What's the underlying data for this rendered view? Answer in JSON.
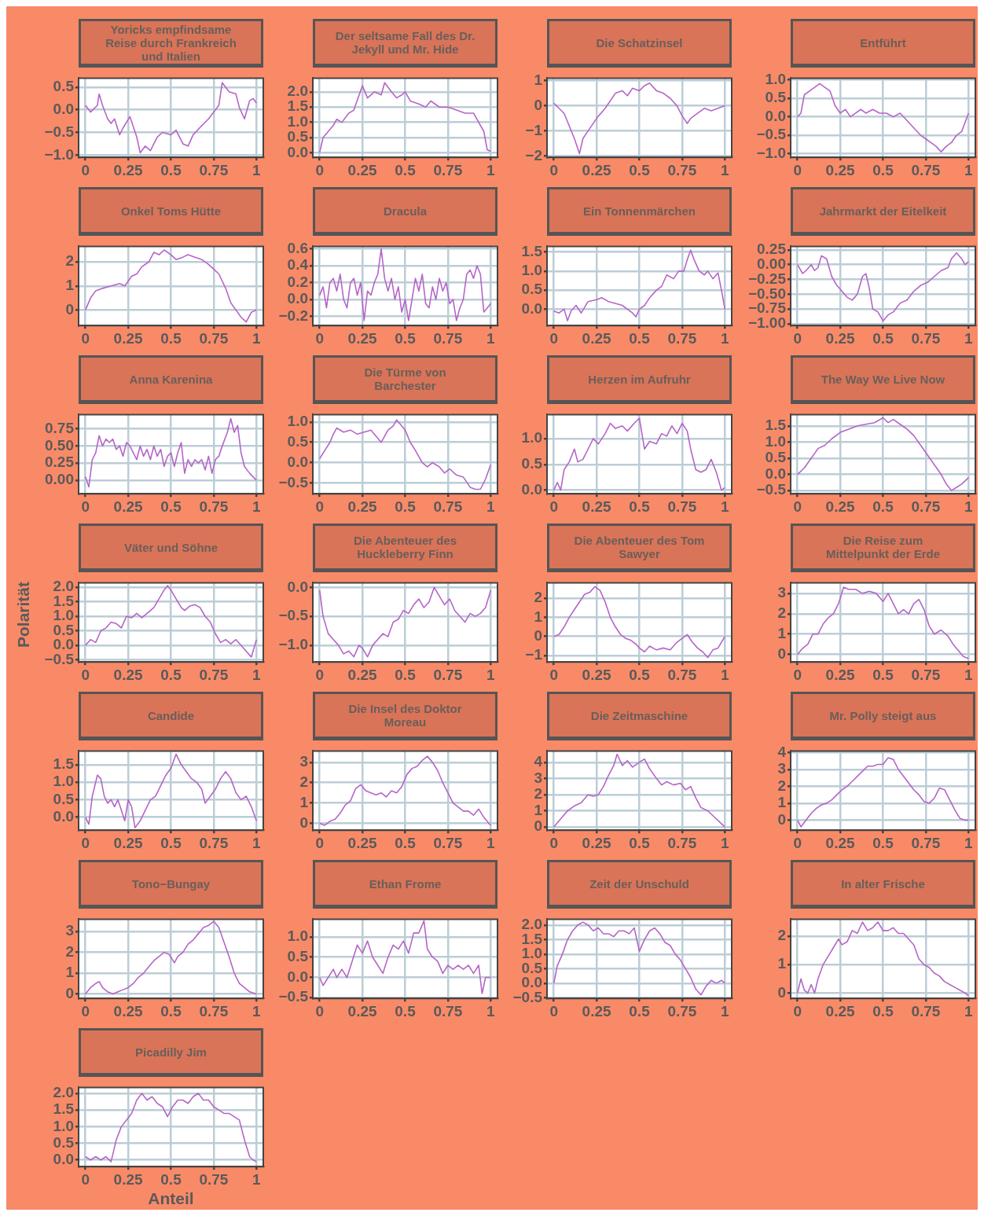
{
  "chart_data": [
    {
      "type": "line",
      "title": "Yoricks empfindsame Reise durch Frankreich und Italien",
      "color": "#b565c8",
      "grid": true,
      "xlim": [
        -0.04,
        1.04
      ],
      "xticks": [
        0,
        0.25,
        0.5,
        0.75,
        1
      ],
      "ylim": [
        -1.05,
        0.7
      ],
      "yticks": [
        0.5,
        {
          "value": 0,
          "label": "0.0"
        },
        {
          "value": -0.5,
          "label": "−0.5"
        },
        {
          "value": -1,
          "label": "−1.0"
        }
      ],
      "x": [
        0,
        0.03,
        0.07,
        0.08,
        0.1,
        0.13,
        0.15,
        0.17,
        0.2,
        0.22,
        0.26,
        0.3,
        0.32,
        0.35,
        0.38,
        0.42,
        0.45,
        0.5,
        0.53,
        0.57,
        0.6,
        0.63,
        0.68,
        0.72,
        0.76,
        0.78,
        0.8,
        0.84,
        0.88,
        0.9,
        0.93,
        0.96,
        0.98,
        1
      ],
      "values": [
        0.1,
        -0.05,
        0.1,
        0.35,
        0.1,
        -0.2,
        -0.3,
        -0.2,
        -0.55,
        -0.4,
        -0.15,
        -0.6,
        -0.95,
        -0.8,
        -0.9,
        -0.6,
        -0.5,
        -0.55,
        -0.45,
        -0.75,
        -0.8,
        -0.55,
        -0.35,
        -0.2,
        0,
        0.1,
        0.6,
        0.4,
        0.35,
        0.05,
        -0.2,
        0.2,
        0.25,
        0.15
      ]
    },
    {
      "type": "line",
      "title": "Der seltsame Fall des Dr. Jekyll und Mr. Hide",
      "color": "#b565c8",
      "grid": true,
      "xlim": [
        -0.04,
        1.04
      ],
      "xticks": [
        0,
        0.25,
        0.5,
        0.75,
        1
      ],
      "ylim": [
        -0.15,
        2.45
      ],
      "yticks": [
        {
          "value": 2,
          "label": "2.0"
        },
        1.5,
        {
          "value": 1,
          "label": "1.0"
        },
        0.5,
        {
          "value": 0,
          "label": "0.0"
        }
      ],
      "x": [
        0,
        0.02,
        0.05,
        0.08,
        0.1,
        0.13,
        0.17,
        0.2,
        0.25,
        0.28,
        0.32,
        0.36,
        0.38,
        0.42,
        0.45,
        0.48,
        0.5,
        0.53,
        0.58,
        0.62,
        0.65,
        0.7,
        0.75,
        0.8,
        0.85,
        0.9,
        0.93,
        0.96,
        0.98,
        1
      ],
      "values": [
        0,
        0.5,
        0.7,
        0.9,
        1.1,
        1,
        1.3,
        1.4,
        2.2,
        1.8,
        2,
        1.9,
        2.3,
        2,
        1.8,
        1.9,
        2,
        1.7,
        1.6,
        1.5,
        1.7,
        1.5,
        1.5,
        1.4,
        1.3,
        1.3,
        1,
        0.7,
        0.1,
        0.05
      ]
    },
    {
      "type": "line",
      "title": "Die Schatzinsel",
      "color": "#b565c8",
      "grid": true,
      "xlim": [
        -0.04,
        1.04
      ],
      "xticks": [
        0,
        0.25,
        0.5,
        0.75,
        1
      ],
      "ylim": [
        -2.05,
        1.1
      ],
      "yticks": [
        1,
        0,
        {
          "value": -1,
          "label": "−1"
        },
        {
          "value": -2,
          "label": "−2"
        }
      ],
      "x": [
        0,
        0.03,
        0.06,
        0.09,
        0.12,
        0.15,
        0.17,
        0.2,
        0.25,
        0.3,
        0.33,
        0.36,
        0.4,
        0.43,
        0.46,
        0.5,
        0.53,
        0.56,
        0.6,
        0.64,
        0.68,
        0.72,
        0.75,
        0.78,
        0.8,
        0.84,
        0.88,
        0.92,
        0.96,
        1
      ],
      "values": [
        0.1,
        -0.1,
        -0.3,
        -0.8,
        -1.3,
        -1.9,
        -1.3,
        -1,
        -0.5,
        -0.1,
        0.2,
        0.5,
        0.6,
        0.4,
        0.7,
        0.6,
        0.8,
        0.9,
        0.6,
        0.5,
        0.3,
        0,
        -0.4,
        -0.7,
        -0.5,
        -0.3,
        -0.1,
        -0.2,
        -0.1,
        0
      ]
    },
    {
      "type": "line",
      "title": "Entführt",
      "color": "#b565c8",
      "grid": true,
      "xlim": [
        -0.04,
        1.04
      ],
      "xticks": [
        0,
        0.25,
        0.5,
        0.75,
        1
      ],
      "ylim": [
        -1.1,
        1.05
      ],
      "yticks": [
        {
          "value": 1,
          "label": "1.0"
        },
        0.5,
        {
          "value": 0,
          "label": "0.0"
        },
        {
          "value": -0.5,
          "label": "−0.5"
        },
        {
          "value": -1,
          "label": "−1.0"
        }
      ],
      "x": [
        0,
        0.02,
        0.04,
        0.07,
        0.1,
        0.13,
        0.16,
        0.19,
        0.22,
        0.25,
        0.28,
        0.31,
        0.34,
        0.37,
        0.4,
        0.44,
        0.48,
        0.52,
        0.56,
        0.6,
        0.64,
        0.68,
        0.72,
        0.75,
        0.78,
        0.81,
        0.84,
        0.87,
        0.9,
        0.93,
        0.96,
        1
      ],
      "values": [
        0,
        0.1,
        0.6,
        0.7,
        0.8,
        0.9,
        0.8,
        0.7,
        0.3,
        0.1,
        0.2,
        0,
        0.1,
        0.2,
        0.1,
        0.2,
        0.1,
        0.1,
        0,
        0.1,
        -0.1,
        -0.3,
        -0.5,
        -0.6,
        -0.7,
        -0.8,
        -0.95,
        -0.8,
        -0.7,
        -0.5,
        -0.4,
        0.1
      ]
    },
    {
      "type": "line",
      "title": "Onkel Toms Hütte",
      "color": "#b565c8",
      "grid": true,
      "xlim": [
        -0.04,
        1.04
      ],
      "xticks": [
        0,
        0.25,
        0.5,
        0.75,
        1
      ],
      "ylim": [
        -0.65,
        2.65
      ],
      "yticks": [
        2,
        1,
        0
      ],
      "x": [
        0,
        0.03,
        0.06,
        0.1,
        0.15,
        0.2,
        0.23,
        0.27,
        0.3,
        0.33,
        0.37,
        0.4,
        0.43,
        0.46,
        0.5,
        0.53,
        0.57,
        0.6,
        0.64,
        0.68,
        0.72,
        0.75,
        0.78,
        0.82,
        0.85,
        0.88,
        0.91,
        0.94,
        0.97,
        1
      ],
      "values": [
        0,
        0.5,
        0.8,
        0.9,
        1,
        1.1,
        1,
        1.4,
        1.5,
        1.8,
        2,
        2.4,
        2.3,
        2.5,
        2.3,
        2.1,
        2.2,
        2.3,
        2.2,
        2.1,
        1.9,
        1.7,
        1.5,
        0.9,
        0.3,
        0,
        -0.3,
        -0.5,
        -0.1,
        0
      ]
    },
    {
      "type": "line",
      "title": "Dracula",
      "color": "#b565c8",
      "grid": true,
      "xlim": [
        -0.04,
        1.04
      ],
      "xticks": [
        0,
        0.25,
        0.5,
        0.75,
        1
      ],
      "ylim": [
        -0.31,
        0.63
      ],
      "yticks": [
        0.6,
        0.4,
        0.2,
        {
          "value": 0,
          "label": "0.0"
        },
        {
          "value": -0.2,
          "label": "−0.2"
        }
      ],
      "x": [
        0,
        0.02,
        0.04,
        0.06,
        0.08,
        0.1,
        0.12,
        0.14,
        0.16,
        0.18,
        0.2,
        0.22,
        0.24,
        0.26,
        0.28,
        0.3,
        0.32,
        0.34,
        0.36,
        0.38,
        0.4,
        0.42,
        0.44,
        0.46,
        0.48,
        0.5,
        0.52,
        0.54,
        0.56,
        0.58,
        0.6,
        0.62,
        0.64,
        0.66,
        0.68,
        0.7,
        0.72,
        0.74,
        0.76,
        0.78,
        0.8,
        0.82,
        0.84,
        0.86,
        0.88,
        0.9,
        0.92,
        0.94,
        0.96,
        0.98,
        1
      ],
      "values": [
        0.05,
        0.15,
        -0.1,
        0.2,
        0.25,
        0.1,
        0.3,
        0,
        -0.1,
        0.2,
        0.25,
        0.05,
        0.2,
        -0.25,
        0.1,
        0.05,
        0.2,
        0.3,
        0.6,
        0.25,
        0.1,
        0.25,
        0,
        0.15,
        -0.15,
        0,
        -0.25,
        0,
        0.25,
        0.1,
        0.3,
        -0.05,
        -0.1,
        0.15,
        0,
        0.25,
        0.1,
        0.2,
        -0.05,
        0,
        -0.25,
        -0.1,
        0,
        0.3,
        0.35,
        0.25,
        0.4,
        0.3,
        -0.15,
        -0.1,
        -0.05
      ]
    },
    {
      "type": "line",
      "title": "Ein Tonnenmärchen",
      "color": "#b565c8",
      "grid": true,
      "xlim": [
        -0.04,
        1.04
      ],
      "xticks": [
        0,
        0.25,
        0.5,
        0.75,
        1
      ],
      "ylim": [
        -0.43,
        1.65
      ],
      "yticks": [
        1.5,
        {
          "value": 1,
          "label": "1.0"
        },
        0.5,
        {
          "value": 0,
          "label": "0.0"
        }
      ],
      "x": [
        0,
        0.03,
        0.06,
        0.08,
        0.1,
        0.13,
        0.16,
        0.2,
        0.25,
        0.28,
        0.32,
        0.36,
        0.4,
        0.43,
        0.46,
        0.48,
        0.5,
        0.53,
        0.56,
        0.6,
        0.63,
        0.66,
        0.7,
        0.73,
        0.76,
        0.78,
        0.8,
        0.82,
        0.85,
        0.88,
        0.9,
        0.93,
        0.96,
        0.98,
        1
      ],
      "values": [
        -0.05,
        -0.1,
        0,
        -0.3,
        -0.05,
        0.1,
        -0.1,
        0.2,
        0.25,
        0.3,
        0.2,
        0.15,
        0.1,
        0,
        -0.1,
        -0.2,
        0,
        0.1,
        0.3,
        0.5,
        0.6,
        0.9,
        0.8,
        1,
        1,
        1.3,
        1.55,
        1.3,
        1,
        0.9,
        1,
        0.8,
        0.95,
        0.5,
        0
      ]
    },
    {
      "type": "line",
      "title": "Jahrmarkt der Eitelkeit",
      "color": "#b565c8",
      "grid": true,
      "xlim": [
        -0.04,
        1.04
      ],
      "xticks": [
        0,
        0.25,
        0.5,
        0.75,
        1
      ],
      "ylim": [
        -1.03,
        0.31
      ],
      "yticks": [
        0.25,
        {
          "value": 0,
          "label": "0.00"
        },
        {
          "value": -0.25,
          "label": "−0.25"
        },
        {
          "value": -0.5,
          "label": "−0.50"
        },
        {
          "value": -0.75,
          "label": "−0.75"
        },
        {
          "value": -1,
          "label": "−1.00"
        }
      ],
      "x": [
        0,
        0.03,
        0.05,
        0.08,
        0.1,
        0.12,
        0.14,
        0.17,
        0.2,
        0.23,
        0.26,
        0.29,
        0.32,
        0.35,
        0.38,
        0.4,
        0.42,
        0.44,
        0.47,
        0.5,
        0.53,
        0.56,
        0.6,
        0.64,
        0.68,
        0.72,
        0.76,
        0.8,
        0.84,
        0.88,
        0.9,
        0.93,
        0.96,
        0.98,
        1
      ],
      "values": [
        0,
        -0.15,
        -0.1,
        0,
        -0.1,
        -0.05,
        0.15,
        0.1,
        -0.2,
        -0.35,
        -0.45,
        -0.55,
        -0.6,
        -0.5,
        -0.2,
        -0.15,
        -0.4,
        -0.75,
        -0.8,
        -0.95,
        -0.85,
        -0.8,
        -0.65,
        -0.6,
        -0.45,
        -0.35,
        -0.3,
        -0.2,
        -0.1,
        -0.05,
        0.1,
        0.2,
        0.1,
        0,
        0.05
      ]
    },
    {
      "type": "line",
      "title": "Anna Karenina",
      "color": "#b565c8",
      "grid": true,
      "xlim": [
        -0.04,
        1.04
      ],
      "xticks": [
        0,
        0.25,
        0.5,
        0.75,
        1
      ],
      "ylim": [
        -0.2,
        0.96
      ],
      "yticks": [
        0.75,
        {
          "value": 0.5,
          "label": "0.50"
        },
        0.25,
        {
          "value": 0,
          "label": "0.00"
        }
      ],
      "x": [
        0,
        0.02,
        0.04,
        0.06,
        0.08,
        0.1,
        0.12,
        0.14,
        0.16,
        0.18,
        0.2,
        0.22,
        0.24,
        0.26,
        0.28,
        0.3,
        0.32,
        0.34,
        0.36,
        0.38,
        0.4,
        0.42,
        0.44,
        0.46,
        0.48,
        0.5,
        0.52,
        0.54,
        0.56,
        0.58,
        0.6,
        0.62,
        0.64,
        0.66,
        0.68,
        0.7,
        0.72,
        0.74,
        0.76,
        0.78,
        0.8,
        0.83,
        0.85,
        0.87,
        0.89,
        0.91,
        0.93,
        0.96,
        1
      ],
      "values": [
        0.05,
        -0.1,
        0.3,
        0.4,
        0.65,
        0.5,
        0.6,
        0.55,
        0.6,
        0.45,
        0.5,
        0.35,
        0.55,
        0.5,
        0.4,
        0.3,
        0.5,
        0.35,
        0.45,
        0.3,
        0.5,
        0.35,
        0.45,
        0.2,
        0.35,
        0.4,
        0.2,
        0.4,
        0.55,
        0.1,
        0.3,
        0.2,
        0.3,
        0.25,
        0.3,
        0.15,
        0.35,
        0.1,
        0.3,
        0.35,
        0.5,
        0.7,
        0.9,
        0.7,
        0.8,
        0.4,
        0.2,
        0.1,
        0
      ]
    },
    {
      "type": "line",
      "title": "Die Türme von Barchester",
      "color": "#b565c8",
      "grid": true,
      "xlim": [
        -0.04,
        1.04
      ],
      "xticks": [
        0,
        0.25,
        0.5,
        0.75,
        1
      ],
      "ylim": [
        -0.76,
        1.18
      ],
      "yticks": [
        {
          "value": 1,
          "label": "1.0"
        },
        0.5,
        {
          "value": 0,
          "label": "0.0"
        },
        {
          "value": -0.5,
          "label": "−0.5"
        }
      ],
      "x": [
        0,
        0.03,
        0.06,
        0.08,
        0.1,
        0.14,
        0.18,
        0.22,
        0.26,
        0.3,
        0.33,
        0.36,
        0.4,
        0.43,
        0.45,
        0.47,
        0.5,
        0.53,
        0.56,
        0.6,
        0.63,
        0.66,
        0.7,
        0.73,
        0.76,
        0.8,
        0.84,
        0.88,
        0.91,
        0.94,
        0.97,
        1
      ],
      "values": [
        0.1,
        0.3,
        0.5,
        0.7,
        0.85,
        0.75,
        0.8,
        0.7,
        0.75,
        0.8,
        0.65,
        0.5,
        0.8,
        0.9,
        1.05,
        0.95,
        0.8,
        0.5,
        0.3,
        0,
        -0.1,
        0,
        -0.1,
        -0.25,
        -0.15,
        -0.3,
        -0.35,
        -0.6,
        -0.65,
        -0.65,
        -0.4,
        -0.05
      ]
    },
    {
      "type": "line",
      "title": "Herzen im Aufruhr",
      "color": "#b565c8",
      "grid": true,
      "xlim": [
        -0.04,
        1.04
      ],
      "xticks": [
        0,
        0.25,
        0.5,
        0.75,
        1
      ],
      "ylim": [
        -0.07,
        1.47
      ],
      "yticks": [
        {
          "value": 1,
          "label": "1.0"
        },
        0.5,
        {
          "value": 0,
          "label": "0.0"
        }
      ],
      "x": [
        0,
        0.02,
        0.04,
        0.06,
        0.09,
        0.12,
        0.14,
        0.17,
        0.2,
        0.23,
        0.26,
        0.3,
        0.33,
        0.36,
        0.4,
        0.43,
        0.47,
        0.5,
        0.53,
        0.56,
        0.6,
        0.63,
        0.66,
        0.69,
        0.72,
        0.75,
        0.78,
        0.8,
        0.83,
        0.86,
        0.89,
        0.92,
        0.95,
        0.98,
        1
      ],
      "values": [
        0,
        0.15,
        0,
        0.4,
        0.55,
        0.8,
        0.55,
        0.6,
        0.8,
        1,
        0.9,
        1.1,
        1.3,
        1.2,
        1.25,
        1.15,
        1.3,
        1.4,
        0.8,
        0.95,
        0.9,
        1.1,
        1.05,
        1.25,
        1.1,
        1.3,
        1.15,
        0.8,
        0.4,
        0.35,
        0.4,
        0.6,
        0.35,
        0,
        0.05
      ]
    },
    {
      "type": "line",
      "title": "The Way We Live Now",
      "color": "#b565c8",
      "grid": true,
      "xlim": [
        -0.04,
        1.04
      ],
      "xticks": [
        0,
        0.25,
        0.5,
        0.75,
        1
      ],
      "ylim": [
        -0.6,
        1.85
      ],
      "yticks": [
        1.5,
        {
          "value": 1,
          "label": "1.0"
        },
        0.5,
        {
          "value": 0,
          "label": "0.0"
        },
        {
          "value": -0.5,
          "label": "−0.5"
        }
      ],
      "x": [
        0,
        0.04,
        0.08,
        0.12,
        0.16,
        0.2,
        0.25,
        0.3,
        0.35,
        0.4,
        0.45,
        0.5,
        0.53,
        0.56,
        0.6,
        0.64,
        0.68,
        0.72,
        0.76,
        0.8,
        0.84,
        0.87,
        0.9,
        0.93,
        0.96,
        1
      ],
      "values": [
        0,
        0.2,
        0.5,
        0.8,
        0.9,
        1.1,
        1.3,
        1.4,
        1.5,
        1.55,
        1.6,
        1.75,
        1.6,
        1.7,
        1.55,
        1.4,
        1.2,
        0.9,
        0.6,
        0.3,
        0,
        -0.3,
        -0.5,
        -0.4,
        -0.3,
        -0.1
      ]
    },
    {
      "type": "line",
      "title": "Väter und Söhne",
      "ylabel": "Polarität",
      "color": "#b565c8",
      "grid": true,
      "xlim": [
        -0.04,
        1.04
      ],
      "xticks": [
        0,
        0.25,
        0.5,
        0.75,
        1
      ],
      "ylim": [
        -0.57,
        2.15
      ],
      "yticks": [
        {
          "value": 2,
          "label": "2.0"
        },
        1.5,
        {
          "value": 1,
          "label": "1.0"
        },
        0.5,
        {
          "value": 0,
          "label": "0.0"
        },
        {
          "value": -0.5,
          "label": "−0.5"
        }
      ],
      "x": [
        0,
        0.03,
        0.06,
        0.09,
        0.12,
        0.15,
        0.18,
        0.21,
        0.24,
        0.27,
        0.3,
        0.33,
        0.36,
        0.4,
        0.43,
        0.46,
        0.48,
        0.5,
        0.53,
        0.56,
        0.58,
        0.61,
        0.64,
        0.67,
        0.7,
        0.73,
        0.76,
        0.79,
        0.82,
        0.85,
        0.88,
        0.91,
        0.94,
        0.97,
        1
      ],
      "values": [
        0,
        0.2,
        0.1,
        0.5,
        0.6,
        0.8,
        0.75,
        0.6,
        1,
        0.95,
        1.1,
        0.95,
        1.1,
        1.3,
        1.6,
        1.9,
        2.05,
        1.9,
        1.6,
        1.3,
        1.2,
        1.35,
        1.4,
        1.3,
        1,
        0.8,
        0.4,
        0.1,
        0.2,
        0.05,
        0.2,
        0,
        -0.2,
        -0.4,
        0.2
      ]
    },
    {
      "type": "line",
      "title": "Die Abenteuer des Huckleberry Finn",
      "color": "#b565c8",
      "grid": true,
      "xlim": [
        -0.04,
        1.04
      ],
      "xticks": [
        0,
        0.25,
        0.5,
        0.75,
        1
      ],
      "ylim": [
        -1.29,
        0.08
      ],
      "yticks": [
        {
          "value": 0,
          "label": "0.0"
        },
        {
          "value": -0.5,
          "label": "−0.5"
        },
        {
          "value": -1,
          "label": "−1.0"
        }
      ],
      "x": [
        0,
        0.02,
        0.05,
        0.08,
        0.11,
        0.14,
        0.17,
        0.2,
        0.23,
        0.25,
        0.28,
        0.31,
        0.34,
        0.37,
        0.4,
        0.43,
        0.46,
        0.49,
        0.52,
        0.55,
        0.58,
        0.61,
        0.64,
        0.67,
        0.7,
        0.73,
        0.76,
        0.79,
        0.82,
        0.85,
        0.88,
        0.91,
        0.94,
        0.97,
        1
      ],
      "values": [
        -0.05,
        -0.5,
        -0.8,
        -0.9,
        -1,
        -1.15,
        -1.1,
        -1.2,
        -1,
        -1.05,
        -1.2,
        -1,
        -0.9,
        -0.8,
        -0.85,
        -0.6,
        -0.55,
        -0.4,
        -0.45,
        -0.3,
        -0.2,
        -0.35,
        -0.25,
        0,
        -0.15,
        -0.3,
        -0.2,
        -0.4,
        -0.5,
        -0.6,
        -0.45,
        -0.5,
        -0.45,
        -0.35,
        -0.05
      ]
    },
    {
      "type": "line",
      "title": "Die Abenteuer des Tom Sawyer",
      "color": "#b565c8",
      "grid": true,
      "xlim": [
        -0.04,
        1.04
      ],
      "xticks": [
        0,
        0.25,
        0.5,
        0.75,
        1
      ],
      "ylim": [
        -1.33,
        2.8
      ],
      "yticks": [
        2,
        1,
        0,
        {
          "value": -1,
          "label": "−1"
        }
      ],
      "x": [
        0,
        0.03,
        0.06,
        0.09,
        0.12,
        0.15,
        0.18,
        0.21,
        0.24,
        0.27,
        0.3,
        0.33,
        0.36,
        0.39,
        0.42,
        0.45,
        0.48,
        0.5,
        0.53,
        0.56,
        0.6,
        0.64,
        0.68,
        0.72,
        0.75,
        0.78,
        0.81,
        0.84,
        0.87,
        0.9,
        0.93,
        0.96,
        1
      ],
      "values": [
        0,
        0.1,
        0.5,
        1,
        1.4,
        1.8,
        2.2,
        2.3,
        2.6,
        2.4,
        1.8,
        1,
        0.5,
        0.1,
        -0.1,
        -0.2,
        -0.4,
        -0.6,
        -0.8,
        -0.5,
        -0.7,
        -0.6,
        -0.7,
        -0.3,
        -0.1,
        0.1,
        -0.3,
        -0.6,
        -0.8,
        -1.1,
        -0.7,
        -0.6,
        0
      ]
    },
    {
      "type": "line",
      "title": "Die Reise zum Mittelpunkt der Erde",
      "color": "#b565c8",
      "grid": true,
      "xlim": [
        -0.04,
        1.04
      ],
      "xticks": [
        0,
        0.25,
        0.5,
        0.75,
        1
      ],
      "ylim": [
        -0.37,
        3.52
      ],
      "yticks": [
        3,
        2,
        1,
        0
      ],
      "x": [
        0,
        0.03,
        0.06,
        0.09,
        0.12,
        0.15,
        0.18,
        0.21,
        0.24,
        0.27,
        0.3,
        0.34,
        0.38,
        0.42,
        0.46,
        0.5,
        0.53,
        0.56,
        0.59,
        0.62,
        0.65,
        0.68,
        0.71,
        0.74,
        0.77,
        0.8,
        0.84,
        0.88,
        0.91,
        0.94,
        0.97,
        1
      ],
      "values": [
        0,
        0.3,
        0.5,
        1,
        1,
        1.5,
        1.8,
        2,
        2.5,
        3.3,
        3.2,
        3.2,
        3,
        3.1,
        3,
        2.6,
        3,
        2.5,
        2,
        2.2,
        2,
        2.5,
        2.7,
        2.2,
        1.4,
        1,
        1.2,
        0.9,
        0.5,
        0.2,
        -0.1,
        -0.2
      ]
    },
    {
      "type": "line",
      "title": "Candide",
      "color": "#b565c8",
      "grid": true,
      "xlim": [
        -0.04,
        1.04
      ],
      "xticks": [
        0,
        0.25,
        0.5,
        0.75,
        1
      ],
      "ylim": [
        -0.37,
        1.89
      ],
      "yticks": [
        1.5,
        {
          "value": 1,
          "label": "1.0"
        },
        0.5,
        {
          "value": 0,
          "label": "0.0"
        }
      ],
      "x": [
        0,
        0.02,
        0.04,
        0.07,
        0.09,
        0.11,
        0.13,
        0.15,
        0.17,
        0.19,
        0.21,
        0.23,
        0.25,
        0.27,
        0.29,
        0.32,
        0.35,
        0.38,
        0.41,
        0.44,
        0.47,
        0.5,
        0.53,
        0.56,
        0.59,
        0.62,
        0.65,
        0.68,
        0.7,
        0.73,
        0.76,
        0.79,
        0.82,
        0.85,
        0.88,
        0.91,
        0.94,
        0.97,
        1
      ],
      "values": [
        0,
        -0.2,
        0.6,
        1.2,
        1.1,
        0.6,
        0.4,
        0.5,
        0.3,
        0.5,
        0.2,
        -0.1,
        0.5,
        0.3,
        -0.3,
        -0.1,
        0.2,
        0.5,
        0.6,
        0.9,
        1.2,
        1.4,
        1.8,
        1.5,
        1.3,
        1.1,
        1,
        0.8,
        0.4,
        0.6,
        0.8,
        1.1,
        1.3,
        1.1,
        0.7,
        0.5,
        0.6,
        0.3,
        -0.1
      ]
    },
    {
      "type": "line",
      "title": "Die Insel des Doktor Moreau",
      "color": "#b565c8",
      "grid": true,
      "xlim": [
        -0.04,
        1.04
      ],
      "xticks": [
        0,
        0.25,
        0.5,
        0.75,
        1
      ],
      "ylim": [
        -0.34,
        3.56
      ],
      "yticks": [
        3,
        2,
        1,
        0
      ],
      "x": [
        0,
        0.03,
        0.06,
        0.09,
        0.12,
        0.15,
        0.18,
        0.21,
        0.24,
        0.27,
        0.3,
        0.33,
        0.36,
        0.39,
        0.42,
        0.45,
        0.48,
        0.51,
        0.54,
        0.57,
        0.6,
        0.63,
        0.66,
        0.69,
        0.72,
        0.75,
        0.78,
        0.81,
        0.84,
        0.87,
        0.9,
        0.93,
        0.96,
        1
      ],
      "values": [
        0,
        -0.1,
        0.1,
        0.2,
        0.5,
        0.9,
        1.1,
        1.7,
        1.9,
        1.6,
        1.5,
        1.4,
        1.5,
        1.3,
        1.6,
        1.5,
        1.8,
        2.4,
        2.7,
        2.8,
        3.1,
        3.3,
        3,
        2.6,
        2,
        1.5,
        1,
        0.8,
        0.6,
        0.6,
        0.4,
        0.7,
        0.3,
        -0.1
      ]
    },
    {
      "type": "line",
      "title": "Die Zeitmaschine",
      "color": "#b565c8",
      "grid": true,
      "xlim": [
        -0.04,
        1.04
      ],
      "xticks": [
        0,
        0.25,
        0.5,
        0.75,
        1
      ],
      "ylim": [
        -0.2,
        4.7
      ],
      "yticks": [
        4,
        3,
        2,
        1,
        0
      ],
      "x": [
        0,
        0.04,
        0.08,
        0.12,
        0.16,
        0.2,
        0.23,
        0.26,
        0.29,
        0.32,
        0.35,
        0.37,
        0.4,
        0.43,
        0.46,
        0.5,
        0.53,
        0.56,
        0.6,
        0.63,
        0.66,
        0.7,
        0.74,
        0.77,
        0.8,
        0.83,
        0.86,
        0.9,
        0.94,
        0.97,
        1
      ],
      "values": [
        0,
        0.5,
        1,
        1.3,
        1.5,
        2,
        1.9,
        2,
        2.5,
        3.2,
        3.8,
        4.5,
        3.8,
        4.1,
        3.7,
        4,
        4.2,
        3.6,
        3,
        2.6,
        2.8,
        2.6,
        2.7,
        2.3,
        2.5,
        1.8,
        1.2,
        1,
        0.6,
        0.3,
        0
      ]
    },
    {
      "type": "line",
      "title": "Mr. Polly steigt aus",
      "color": "#b565c8",
      "grid": true,
      "xlim": [
        -0.04,
        1.04
      ],
      "xticks": [
        0,
        0.25,
        0.5,
        0.75,
        1
      ],
      "ylim": [
        -0.6,
        4.1
      ],
      "yticks": [
        4,
        3,
        2,
        1,
        0
      ],
      "x": [
        0,
        0.02,
        0.05,
        0.08,
        0.11,
        0.14,
        0.17,
        0.2,
        0.23,
        0.26,
        0.29,
        0.32,
        0.35,
        0.38,
        0.41,
        0.44,
        0.47,
        0.5,
        0.53,
        0.56,
        0.59,
        0.62,
        0.65,
        0.68,
        0.71,
        0.74,
        0.77,
        0.8,
        0.83,
        0.86,
        0.89,
        0.92,
        0.95,
        0.98,
        1
      ],
      "values": [
        0,
        -0.4,
        0,
        0.4,
        0.7,
        0.9,
        1,
        1.2,
        1.5,
        1.8,
        2,
        2.3,
        2.6,
        2.9,
        3.2,
        3.2,
        3.3,
        3.3,
        3.7,
        3.6,
        3,
        2.6,
        2.2,
        1.8,
        1.5,
        1.1,
        1,
        1.3,
        1.9,
        1.8,
        1.2,
        0.6,
        0.1,
        0,
        0
      ]
    },
    {
      "type": "line",
      "title": "Tono−Bungay",
      "color": "#b565c8",
      "grid": true,
      "xlim": [
        -0.04,
        1.04
      ],
      "xticks": [
        0,
        0.25,
        0.5,
        0.75,
        1
      ],
      "ylim": [
        -0.22,
        3.6
      ],
      "yticks": [
        3,
        2,
        1,
        0
      ],
      "x": [
        0,
        0.03,
        0.06,
        0.08,
        0.1,
        0.13,
        0.16,
        0.19,
        0.22,
        0.25,
        0.28,
        0.31,
        0.34,
        0.37,
        0.4,
        0.43,
        0.46,
        0.49,
        0.52,
        0.54,
        0.57,
        0.6,
        0.63,
        0.66,
        0.69,
        0.72,
        0.75,
        0.78,
        0.81,
        0.84,
        0.87,
        0.9,
        0.93,
        0.96,
        1
      ],
      "values": [
        0,
        0.3,
        0.5,
        0.6,
        0.3,
        0.1,
        0,
        0.1,
        0.2,
        0.3,
        0.5,
        0.8,
        1,
        1.3,
        1.6,
        1.8,
        2,
        1.9,
        1.5,
        1.8,
        2,
        2.4,
        2.6,
        2.9,
        3.2,
        3.3,
        3.5,
        3.2,
        2.5,
        1.8,
        1,
        0.5,
        0.3,
        0.1,
        0
      ]
    },
    {
      "type": "line",
      "title": "Ethan Frome",
      "color": "#b565c8",
      "grid": true,
      "xlim": [
        -0.04,
        1.04
      ],
      "xticks": [
        0,
        0.25,
        0.5,
        0.75,
        1
      ],
      "ylim": [
        -0.52,
        1.44
      ],
      "yticks": [
        {
          "value": 1,
          "label": "1.0"
        },
        0.5,
        {
          "value": 0,
          "label": "0.0"
        },
        {
          "value": -0.5,
          "label": "−0.5"
        }
      ],
      "x": [
        0,
        0.02,
        0.05,
        0.08,
        0.1,
        0.13,
        0.16,
        0.19,
        0.22,
        0.25,
        0.28,
        0.31,
        0.34,
        0.37,
        0.4,
        0.43,
        0.46,
        0.49,
        0.52,
        0.55,
        0.58,
        0.61,
        0.63,
        0.66,
        0.69,
        0.72,
        0.75,
        0.78,
        0.81,
        0.84,
        0.87,
        0.9,
        0.93,
        0.95,
        0.97,
        1
      ],
      "values": [
        0,
        -0.2,
        0,
        0.2,
        0,
        0.2,
        0,
        0.4,
        0.8,
        0.6,
        0.9,
        0.5,
        0.3,
        0.1,
        0.5,
        0.8,
        0.7,
        0.9,
        0.6,
        1.1,
        1.1,
        1.4,
        0.7,
        0.5,
        0.4,
        0.1,
        0.3,
        0.2,
        0.3,
        0.2,
        0.3,
        0.1,
        0.3,
        -0.4,
        0,
        0
      ]
    },
    {
      "type": "line",
      "title": "Zeit der Unschuld",
      "color": "#b565c8",
      "grid": true,
      "xlim": [
        -0.04,
        1.04
      ],
      "xticks": [
        0,
        0.25,
        0.5,
        0.75,
        1
      ],
      "ylim": [
        -0.52,
        2.2
      ],
      "yticks": [
        {
          "value": 2,
          "label": "2.0"
        },
        1.5,
        {
          "value": 1,
          "label": "1.0"
        },
        0.5,
        {
          "value": 0,
          "label": "0.0"
        },
        {
          "value": -0.5,
          "label": "−0.5"
        }
      ],
      "x": [
        0,
        0.02,
        0.05,
        0.08,
        0.11,
        0.14,
        0.17,
        0.2,
        0.23,
        0.26,
        0.29,
        0.32,
        0.35,
        0.38,
        0.41,
        0.44,
        0.47,
        0.5,
        0.53,
        0.56,
        0.59,
        0.62,
        0.65,
        0.68,
        0.71,
        0.74,
        0.77,
        0.8,
        0.83,
        0.86,
        0.89,
        0.92,
        0.95,
        0.98,
        1
      ],
      "values": [
        0,
        0.6,
        1,
        1.5,
        1.8,
        2,
        2.1,
        2,
        1.8,
        1.9,
        1.7,
        1.7,
        1.6,
        1.8,
        1.8,
        1.7,
        1.9,
        1.1,
        1.5,
        1.8,
        1.9,
        1.7,
        1.4,
        1.3,
        1,
        0.8,
        0.5,
        0.2,
        -0.2,
        -0.4,
        -0.1,
        0.1,
        0,
        0.1,
        0
      ]
    },
    {
      "type": "line",
      "title": "In alter Frische",
      "color": "#b565c8",
      "grid": true,
      "xlim": [
        -0.04,
        1.04
      ],
      "xticks": [
        0,
        0.25,
        0.5,
        0.75,
        1
      ],
      "ylim": [
        -0.19,
        2.6
      ],
      "yticks": [
        2,
        1,
        0
      ],
      "x": [
        0,
        0.02,
        0.04,
        0.06,
        0.08,
        0.1,
        0.12,
        0.15,
        0.18,
        0.21,
        0.24,
        0.26,
        0.29,
        0.32,
        0.35,
        0.38,
        0.41,
        0.44,
        0.47,
        0.5,
        0.53,
        0.56,
        0.59,
        0.62,
        0.65,
        0.68,
        0.71,
        0.74,
        0.77,
        0.8,
        0.83,
        0.86,
        0.89,
        0.92,
        0.95,
        0.98,
        1
      ],
      "values": [
        0,
        0.5,
        0.1,
        0,
        0.3,
        0,
        0.5,
        1,
        1.3,
        1.6,
        1.9,
        1.7,
        1.8,
        2.2,
        2.1,
        2.5,
        2.2,
        2.3,
        2.5,
        2.2,
        2.2,
        2.3,
        2.1,
        2.1,
        1.9,
        1.7,
        1.2,
        1,
        0.9,
        0.7,
        0.6,
        0.4,
        0.3,
        0.2,
        0.1,
        0,
        -0.1
      ]
    },
    {
      "type": "line",
      "title": "Picadilly Jim",
      "xlabel": "Anteil",
      "color": "#b565c8",
      "grid": true,
      "xlim": [
        -0.04,
        1.04
      ],
      "xticks": [
        0,
        0.25,
        0.5,
        0.75,
        1
      ],
      "ylim": [
        -0.2,
        2.18
      ],
      "yticks": [
        {
          "value": 2,
          "label": "2.0"
        },
        1.5,
        {
          "value": 1,
          "label": "1.0"
        },
        0.5,
        {
          "value": 0,
          "label": "0.0"
        }
      ],
      "x": [
        0,
        0.03,
        0.06,
        0.09,
        0.12,
        0.15,
        0.18,
        0.21,
        0.24,
        0.27,
        0.3,
        0.33,
        0.36,
        0.39,
        0.42,
        0.45,
        0.48,
        0.51,
        0.54,
        0.57,
        0.6,
        0.63,
        0.66,
        0.69,
        0.72,
        0.75,
        0.78,
        0.81,
        0.84,
        0.87,
        0.9,
        0.93,
        0.96,
        0.98,
        1
      ],
      "values": [
        0.1,
        0,
        0.1,
        0,
        0.1,
        -0.05,
        0.6,
        1,
        1.2,
        1.4,
        1.8,
        2,
        1.8,
        1.9,
        1.7,
        1.6,
        1.3,
        1.6,
        1.8,
        1.8,
        1.7,
        1.9,
        2,
        1.8,
        1.8,
        1.6,
        1.5,
        1.4,
        1.4,
        1.3,
        1.2,
        0.6,
        0.1,
        0,
        -0.05
      ]
    }
  ]
}
